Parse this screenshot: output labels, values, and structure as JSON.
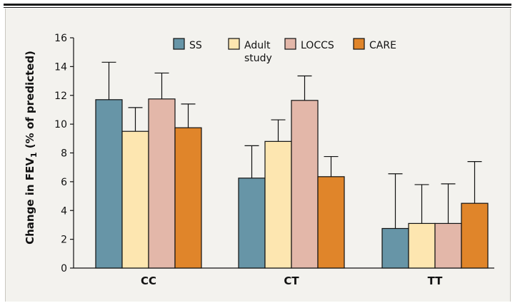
{
  "chart_data": {
    "type": "bar",
    "categories": [
      "CC",
      "CT",
      "TT"
    ],
    "ylabel_main": "Change in FEV",
    "ylabel_sub": "1",
    "ylabel_tail": " (% of predicted)",
    "ylim": [
      0,
      16
    ],
    "yticks": [
      "0",
      "2",
      "4",
      "6",
      "8",
      "10",
      "12",
      "14",
      "16"
    ],
    "grid": false,
    "legend_position": "top",
    "series": [
      {
        "name": "SS",
        "color": "#6795a7",
        "values": [
          11.7,
          6.25,
          2.75
        ],
        "errors": [
          2.6,
          2.25,
          3.8
        ]
      },
      {
        "name": "Adult\nstudy",
        "color": "#fde6b0",
        "values": [
          9.5,
          8.8,
          3.1
        ],
        "errors": [
          1.65,
          1.5,
          2.7
        ]
      },
      {
        "name": "LOCCS",
        "color": "#e3b7a9",
        "values": [
          11.75,
          11.65,
          3.1
        ],
        "errors": [
          1.8,
          1.7,
          2.75
        ]
      },
      {
        "name": "CARE",
        "color": "#e0852a",
        "values": [
          9.75,
          6.35,
          4.5
        ],
        "errors": [
          1.65,
          1.4,
          2.9
        ]
      }
    ]
  }
}
